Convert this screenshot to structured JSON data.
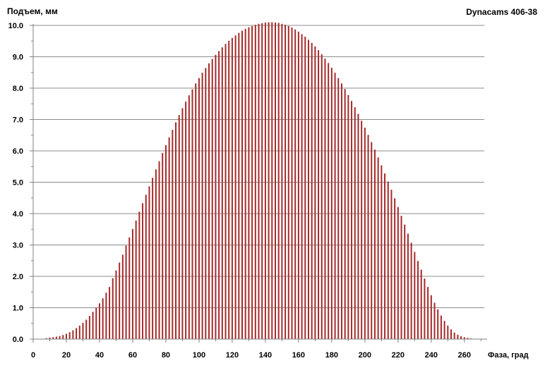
{
  "chart_data": {
    "type": "bar",
    "title": "Dynacams 406-38",
    "ylabel": "Подъем, мм",
    "xlabel": "Фаза, град",
    "xlim": [
      0,
      272
    ],
    "ylim": [
      0,
      10.0
    ],
    "x_ticks": [
      "0",
      "20",
      "40",
      "60",
      "80",
      "100",
      "120",
      "140",
      "160",
      "180",
      "200",
      "220",
      "240",
      "260"
    ],
    "y_ticks": [
      "0.0",
      "1.0",
      "2.0",
      "3.0",
      "4.0",
      "5.0",
      "6.0",
      "7.0",
      "8.0",
      "9.0",
      "10.0"
    ],
    "grid": "horizontal",
    "bar_color": "#a52a2a",
    "x": [
      8,
      10,
      12,
      14,
      16,
      18,
      20,
      22,
      24,
      26,
      28,
      30,
      32,
      34,
      36,
      38,
      40,
      42,
      44,
      46,
      48,
      50,
      52,
      54,
      56,
      58,
      60,
      62,
      64,
      66,
      68,
      70,
      72,
      74,
      76,
      78,
      80,
      82,
      84,
      86,
      88,
      90,
      92,
      94,
      96,
      98,
      100,
      102,
      104,
      106,
      108,
      110,
      112,
      114,
      116,
      118,
      120,
      122,
      124,
      126,
      128,
      130,
      132,
      134,
      136,
      138,
      140,
      142,
      144,
      146,
      148,
      150,
      152,
      154,
      156,
      158,
      160,
      162,
      164,
      166,
      168,
      170,
      172,
      174,
      176,
      178,
      180,
      182,
      184,
      186,
      188,
      190,
      192,
      194,
      196,
      198,
      200,
      202,
      204,
      206,
      208,
      210,
      212,
      214,
      216,
      218,
      220,
      222,
      224,
      226,
      228,
      230,
      232,
      234,
      236,
      238,
      240,
      242,
      244,
      246,
      248,
      250,
      252,
      254,
      256,
      258,
      260,
      262,
      264,
      266,
      268,
      270
    ],
    "values": [
      0.03,
      0.05,
      0.06,
      0.08,
      0.1,
      0.13,
      0.17,
      0.22,
      0.28,
      0.35,
      0.43,
      0.52,
      0.62,
      0.74,
      0.87,
      1.0,
      1.14,
      1.3,
      1.48,
      1.66,
      1.94,
      2.19,
      2.44,
      2.69,
      2.98,
      3.24,
      3.51,
      3.78,
      4.06,
      4.33,
      4.6,
      4.87,
      5.14,
      5.41,
      5.67,
      5.93,
      6.18,
      6.43,
      6.67,
      6.91,
      7.14,
      7.36,
      7.57,
      7.77,
      7.96,
      8.15,
      8.32,
      8.49,
      8.64,
      8.79,
      8.93,
      9.06,
      9.18,
      9.3,
      9.41,
      9.51,
      9.6,
      9.68,
      9.76,
      9.83,
      9.89,
      9.94,
      9.98,
      10.02,
      10.05,
      10.07,
      10.09,
      10.1,
      10.1,
      10.09,
      10.08,
      10.05,
      10.02,
      9.98,
      9.93,
      9.87,
      9.8,
      9.72,
      9.64,
      9.54,
      9.44,
      9.33,
      9.21,
      9.08,
      8.94,
      8.8,
      8.65,
      8.49,
      8.32,
      8.15,
      7.97,
      7.78,
      7.59,
      7.39,
      7.18,
      6.96,
      6.74,
      6.51,
      6.28,
      6.04,
      5.79,
      5.54,
      5.28,
      5.02,
      4.76,
      4.49,
      4.21,
      3.93,
      3.65,
      3.36,
      3.07,
      2.78,
      2.49,
      2.21,
      1.93,
      1.66,
      1.4,
      1.16,
      0.95,
      0.75,
      0.58,
      0.43,
      0.31,
      0.21,
      0.14,
      0.09,
      0.06,
      0.04,
      0.02,
      0.01,
      0.01,
      0.0
    ]
  }
}
